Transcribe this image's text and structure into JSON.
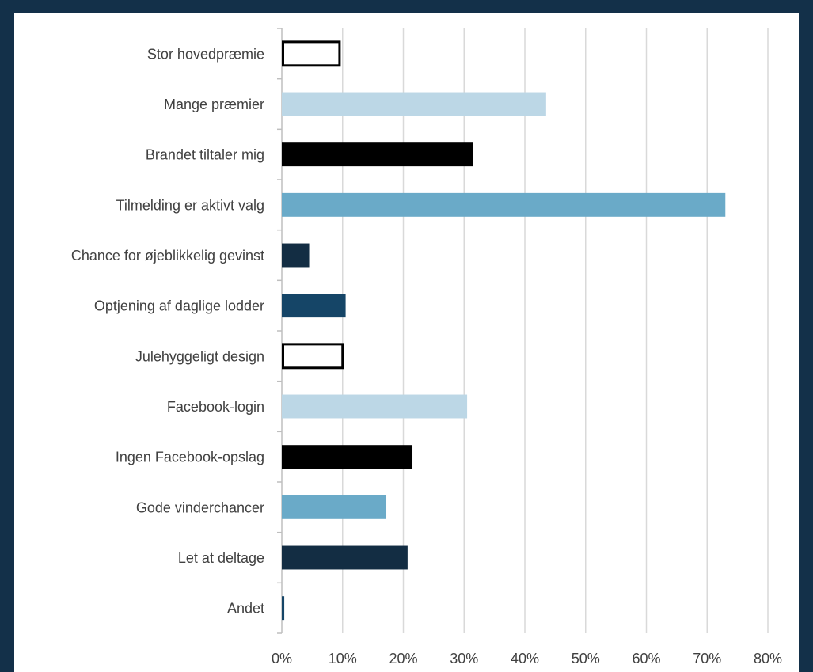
{
  "chart_data": {
    "type": "bar",
    "orientation": "horizontal",
    "title": "",
    "xlabel": "",
    "ylabel": "",
    "categories": [
      "Stor hovedpræmie",
      "Mange præmier",
      "Brandet tiltaler mig",
      "Tilmelding er aktivt valg",
      "Chance for øjeblikkelig gevinst",
      "Optjening af daglige lodder",
      "Julehyggeligt design",
      "Facebook-login",
      "Ingen Facebook-opslag",
      "Gode vinderchancer",
      "Let at deltage",
      "Andet"
    ],
    "values": [
      9.5,
      43.5,
      31.5,
      73,
      4.5,
      10.5,
      10,
      30.5,
      21.5,
      17.2,
      20.7,
      0.4
    ],
    "bar_styles": [
      {
        "fill": "#ffffff",
        "stroke": "#000000"
      },
      {
        "fill": "#bcd7e6",
        "stroke": "none"
      },
      {
        "fill": "#000000",
        "stroke": "none"
      },
      {
        "fill": "#6aaac8",
        "stroke": "none"
      },
      {
        "fill": "#132d43",
        "stroke": "none"
      },
      {
        "fill": "#154567",
        "stroke": "none"
      },
      {
        "fill": "#ffffff",
        "stroke": "#000000"
      },
      {
        "fill": "#bcd7e6",
        "stroke": "none"
      },
      {
        "fill": "#000000",
        "stroke": "none"
      },
      {
        "fill": "#6aaac8",
        "stroke": "none"
      },
      {
        "fill": "#132d43",
        "stroke": "none"
      },
      {
        "fill": "#154567",
        "stroke": "none"
      }
    ],
    "xlim": [
      0,
      80
    ],
    "x_ticks": [
      0,
      10,
      20,
      30,
      40,
      50,
      60,
      70,
      80
    ],
    "x_tick_labels": [
      "0%",
      "10%",
      "20%",
      "30%",
      "40%",
      "50%",
      "60%",
      "70%",
      "80%"
    ],
    "grid": "vertical",
    "legend": "none",
    "colors": {
      "background": "#133049",
      "plot_background": "#ffffff",
      "grid": "#d9d9d9",
      "axis": "#bfbfbf",
      "text": "#404040"
    }
  }
}
